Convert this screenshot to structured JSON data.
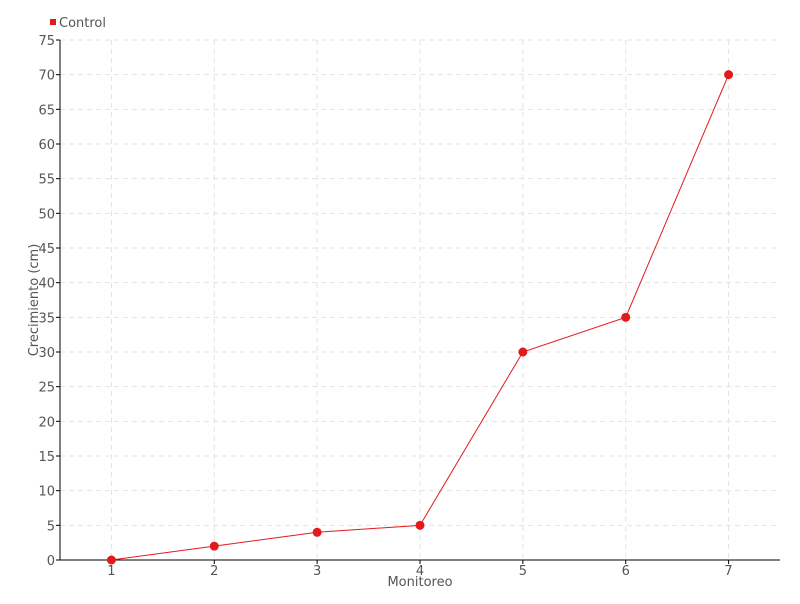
{
  "chart_data": {
    "type": "line",
    "title": "",
    "xlabel": "Monitoreo",
    "ylabel": "Crecimiento (cm)",
    "x": [
      1,
      2,
      3,
      4,
      5,
      6,
      7
    ],
    "xlim": [
      0.5,
      7.5
    ],
    "ylim": [
      0,
      75
    ],
    "yticks": [
      0,
      5,
      10,
      15,
      20,
      25,
      30,
      35,
      40,
      45,
      50,
      55,
      60,
      65,
      70,
      75
    ],
    "grid": true,
    "legend_position": "top-left",
    "series": [
      {
        "name": "Control",
        "color": "#e31a1c",
        "values": [
          0,
          2,
          4,
          5,
          30,
          35,
          70
        ]
      }
    ]
  }
}
